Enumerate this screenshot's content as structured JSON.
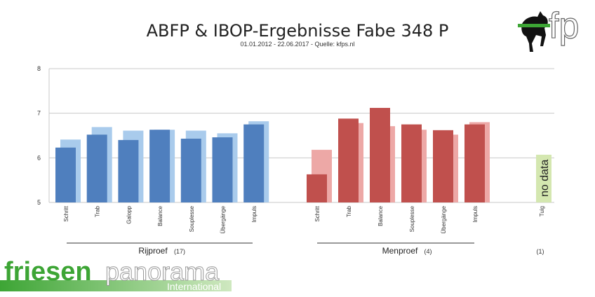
{
  "header": {
    "title": "ABFP & IBOP-Ergebnisse Fabe 348 P",
    "subtitle": "01.01.2012 - 22.06.2017 - Quelle: kfps.nl"
  },
  "logos": {
    "fp_letters": "fp",
    "brand_bold": "friesen",
    "brand_light": "panorama",
    "brand_sub": "International"
  },
  "colors": {
    "rijproef_primary": "#4f7fbe",
    "rijproef_secondary": "#a9cbec",
    "menproef_primary": "#c0504d",
    "menproef_secondary": "#eda8a6",
    "no_data_box": "#d4e7b0",
    "brand_green": "#3da535"
  },
  "chart_data": {
    "type": "bar",
    "ylim": [
      5,
      8
    ],
    "yticks": [
      5,
      6,
      7,
      8
    ],
    "grid": true,
    "groups": [
      {
        "name": "Rijproef",
        "count": "(17)",
        "categories": [
          "Schritt",
          "Trab",
          "Galopp",
          "Balance",
          "Souplesse",
          "Übergänge",
          "Impuls"
        ],
        "series": [
          {
            "values": [
              6.23,
              6.52,
              6.4,
              6.63,
              6.43,
              6.46,
              6.75
            ]
          },
          {
            "values": [
              6.41,
              6.69,
              6.61,
              6.63,
              6.61,
              6.55,
              6.82
            ]
          }
        ]
      },
      {
        "name": "Menproef",
        "count": "(4)",
        "categories": [
          "Schritt",
          "Trab",
          "Balance",
          "Souplesse",
          "Übergänge",
          "Impuls"
        ],
        "series": [
          {
            "values": [
              5.63,
              6.88,
              7.12,
              6.75,
              6.62,
              6.75
            ]
          },
          {
            "values": [
              6.18,
              6.78,
              6.71,
              6.63,
              6.52,
              6.8
            ]
          }
        ]
      },
      {
        "name": "",
        "count": "(1)",
        "categories": [
          "Tuig"
        ],
        "annotation": "no data"
      }
    ]
  }
}
